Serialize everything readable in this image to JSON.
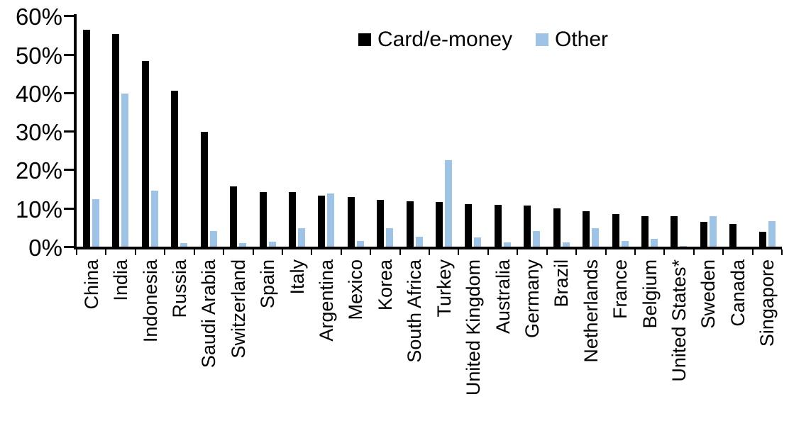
{
  "chart_data": {
    "type": "bar",
    "title": "",
    "xlabel": "",
    "ylabel": "",
    "categories": [
      "China",
      "India",
      "Indonesia",
      "Russia",
      "Saudi Arabia",
      "Switzerland",
      "Spain",
      "Italy",
      "Argentina",
      "Mexico",
      "Korea",
      "South Africa",
      "Turkey",
      "United Kingdom",
      "Australia",
      "Germany",
      "Brazil",
      "Netherlands",
      "France",
      "Belgium",
      "United States*",
      "Sweden",
      "Canada",
      "Singapore"
    ],
    "series": [
      {
        "name": "Card/e-money",
        "color": "#000000",
        "values": [
          56.3,
          55.2,
          48.3,
          40.5,
          29.8,
          15.6,
          14.2,
          14.1,
          13.3,
          12.9,
          12.2,
          11.8,
          11.6,
          11.1,
          10.8,
          10.6,
          10.0,
          9.2,
          8.5,
          8.0,
          7.9,
          6.4,
          5.9,
          3.8
        ]
      },
      {
        "name": "Other",
        "color": "#9DC3E6",
        "values": [
          12.3,
          39.7,
          14.5,
          1.0,
          4.0,
          0.9,
          1.2,
          4.7,
          13.8,
          1.5,
          4.7,
          2.5,
          22.5,
          2.4,
          1.1,
          4.0,
          1.1,
          4.8,
          1.5,
          2.1,
          0.2,
          8.0,
          0.0,
          6.6
        ]
      }
    ],
    "ylim": [
      0,
      60
    ],
    "y_ticks": [
      0,
      10,
      20,
      30,
      40,
      50,
      60
    ],
    "y_tick_labels": [
      "0%",
      "10%",
      "20%",
      "30%",
      "40%",
      "50%",
      "60%"
    ],
    "grid": false,
    "legend_position": "top-center",
    "x_label_rotation_degrees": 90
  }
}
